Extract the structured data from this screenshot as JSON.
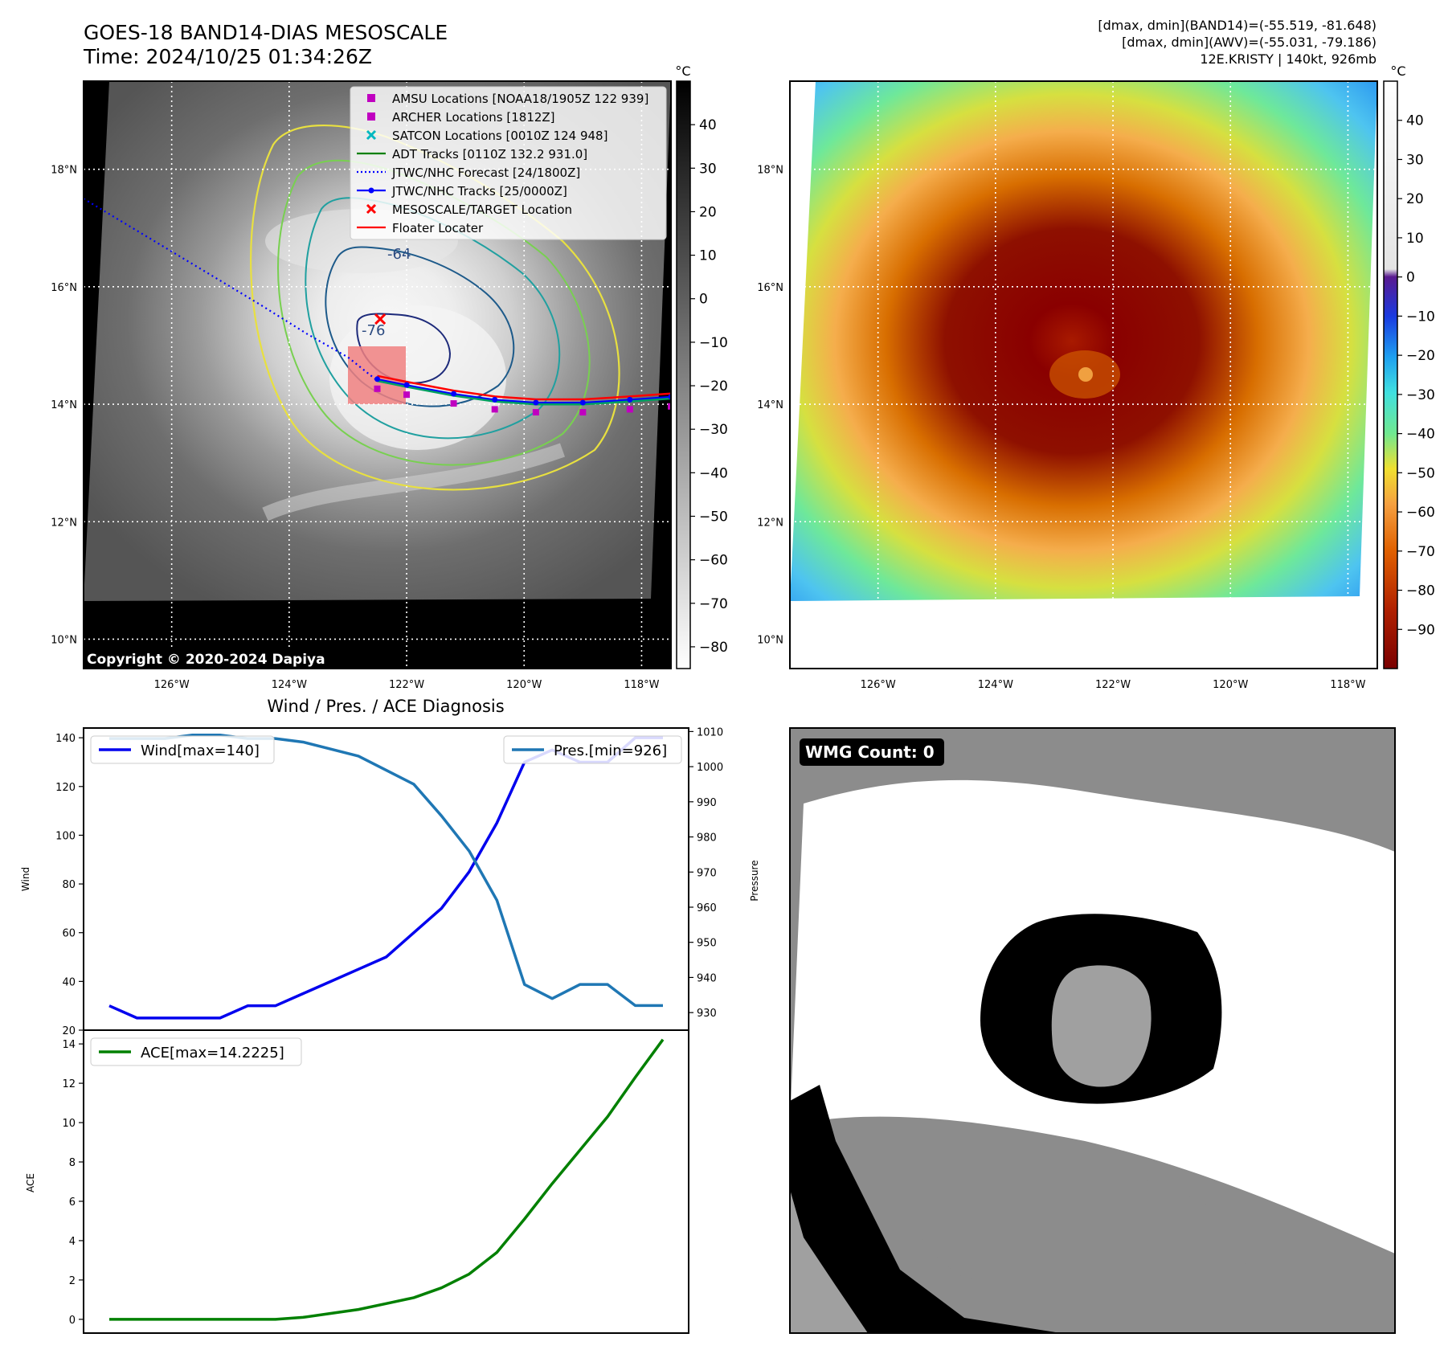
{
  "header": {
    "title_line1": "GOES-18 BAND14-DIAS MESOSCALE",
    "title_line2": "Time: 2024/10/25 01:34:26Z",
    "stats_line1": "[dmax, dmin](BAND14)=(-55.519, -81.648)",
    "stats_line2": "[dmax, dmin](AWV)=(-55.031, -79.186)",
    "stats_line3": "12E.KRISTY | 140kt, 926mb"
  },
  "map": {
    "lon_labels": [
      "126°W",
      "124°W",
      "122°W",
      "120°W",
      "118°W"
    ],
    "lon_values": [
      -126,
      -124,
      -122,
      -120,
      -118
    ],
    "lat_labels": [
      "18°N",
      "16°N",
      "14°N",
      "12°N",
      "10°N"
    ],
    "lat_values": [
      18,
      16,
      14,
      12,
      10
    ],
    "lon_range": [
      -127.5,
      -117.5
    ],
    "lat_range": [
      9.5,
      19.5
    ],
    "copyright": "Copyright © 2020-2024 Dapiya",
    "contour_labels": [
      "-64",
      "-76"
    ],
    "legend": [
      {
        "label": "AMSU Locations [NOAA18/1905Z 122 939]",
        "color": "#c000c0",
        "kind": "square"
      },
      {
        "label": "ARCHER Locations [1812Z]",
        "color": "#c000c0",
        "kind": "square"
      },
      {
        "label": "SATCON Locations [0010Z 124 948]",
        "color": "#00b8c0",
        "kind": "x"
      },
      {
        "label": "ADT Tracks [0110Z 132.2 931.0]",
        "color": "#008000",
        "kind": "line"
      },
      {
        "label": "JTWC/NHC Forecast [24/1800Z]",
        "color": "#0000ff",
        "kind": "dotted"
      },
      {
        "label": "JTWC/NHC Tracks [25/0000Z]",
        "color": "#0000ff",
        "kind": "line-dot"
      },
      {
        "label": "MESOSCALE/TARGET Location",
        "color": "#ff0000",
        "kind": "x"
      },
      {
        "label": "Floater Locater",
        "color": "#ff0000",
        "kind": "line"
      }
    ],
    "track_points": [
      {
        "lon": -122.5,
        "lat": 14.4
      },
      {
        "lon": -122.0,
        "lat": 14.3
      },
      {
        "lon": -121.2,
        "lat": 14.15
      },
      {
        "lon": -120.5,
        "lat": 14.05
      },
      {
        "lon": -119.8,
        "lat": 14.0
      },
      {
        "lon": -119.0,
        "lat": 14.0
      },
      {
        "lon": -118.2,
        "lat": 14.05
      },
      {
        "lon": -117.5,
        "lat": 14.1
      }
    ],
    "forecast_points": [
      {
        "lon": -127.5,
        "lat": 17.5
      },
      {
        "lon": -126.5,
        "lat": 16.9
      },
      {
        "lon": -125.5,
        "lat": 16.3
      },
      {
        "lon": -124.5,
        "lat": 15.7
      },
      {
        "lon": -123.7,
        "lat": 15.2
      },
      {
        "lon": -123.0,
        "lat": 14.8
      },
      {
        "lon": -122.5,
        "lat": 14.4
      }
    ],
    "target": {
      "lon": -122.45,
      "lat": 15.45
    }
  },
  "colorbar_gray": {
    "unit": "°C",
    "ticks": [
      40,
      30,
      20,
      10,
      0,
      -10,
      -20,
      -30,
      -40,
      -50,
      -60,
      -70,
      -80
    ],
    "range": [
      -85,
      50
    ]
  },
  "colorbar_color": {
    "unit": "°C",
    "ticks": [
      40,
      30,
      20,
      10,
      0,
      -10,
      -20,
      -30,
      -40,
      -50,
      -60,
      -70,
      -80,
      -90
    ],
    "range": [
      -100,
      50
    ]
  },
  "chart_data": [
    {
      "type": "line",
      "title": "Wind / Pres. / ACE Diagnosis",
      "ylabel": "Wind",
      "y2label": "Pressure",
      "ylim": [
        20,
        144
      ],
      "y2lim": [
        925,
        1011
      ],
      "yticks": [
        20,
        40,
        60,
        80,
        100,
        120,
        140
      ],
      "y2ticks": [
        930,
        940,
        950,
        960,
        970,
        980,
        990,
        1000,
        1010
      ],
      "series": [
        {
          "name": "Wind[max=140]",
          "color": "#0000ee",
          "axis": "left",
          "values": [
            30,
            25,
            25,
            25,
            25,
            30,
            30,
            35,
            40,
            45,
            50,
            60,
            70,
            85,
            105,
            130,
            135,
            130,
            130,
            140,
            140
          ]
        },
        {
          "name": "Pres.[min=926]",
          "color": "#1f77b4",
          "axis": "right",
          "values": [
            1008,
            1008,
            1008,
            1009,
            1009,
            1008,
            1008,
            1007,
            1005,
            1003,
            999,
            995,
            986,
            976,
            962,
            938,
            934,
            938,
            938,
            932,
            932
          ]
        }
      ]
    },
    {
      "type": "line",
      "ylabel": "ACE",
      "ylim": [
        -0.7,
        14.7
      ],
      "yticks": [
        0,
        2,
        4,
        6,
        8,
        10,
        12,
        14
      ],
      "series": [
        {
          "name": "ACE[max=14.2225]",
          "color": "#008000",
          "values": [
            0,
            0,
            0,
            0,
            0,
            0,
            0,
            0.1,
            0.3,
            0.5,
            0.8,
            1.1,
            1.6,
            2.3,
            3.4,
            5.1,
            6.9,
            8.6,
            10.3,
            12.3,
            14.2225
          ]
        }
      ]
    }
  ],
  "wmg": {
    "label": "WMG Count: 0"
  }
}
